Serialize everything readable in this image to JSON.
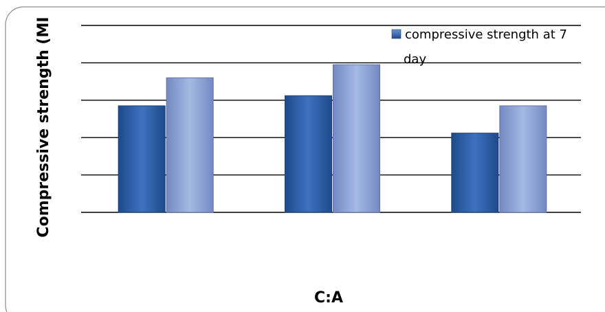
{
  "chart_data": {
    "type": "bar",
    "title": "",
    "xlabel": "C:A",
    "ylabel": "Compressive strength (MPa)",
    "ylabel_visible": "Compressive strength (MI",
    "categories": [
      "",
      "",
      ""
    ],
    "ylim": [
      0,
      5
    ],
    "grid": true,
    "legend_position": "top-right",
    "series": [
      {
        "name": "compressive strength at 7 day",
        "values": [
          2.85,
          3.12,
          2.12
        ],
        "color": "#2f5fa8"
      },
      {
        "name": "",
        "values": [
          3.6,
          3.95,
          2.85
        ],
        "color": "#8fa8d8"
      }
    ]
  }
}
